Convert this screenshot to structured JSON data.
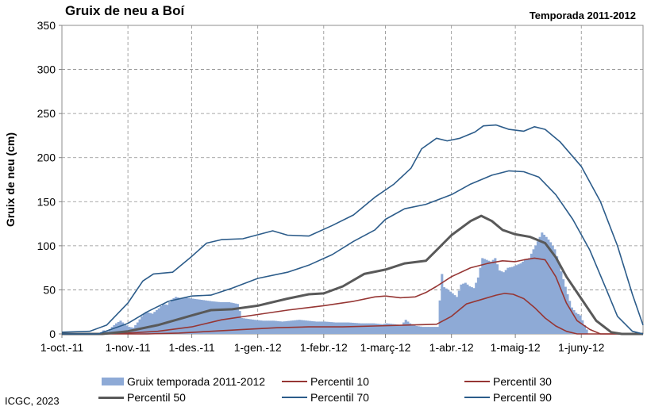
{
  "header": {
    "title": "Gruix de neu a Boí",
    "season": "Temporada 2011-2012"
  },
  "footer": {
    "credit": "ICGC, 2023"
  },
  "colors": {
    "bars": "#8EAAD6",
    "p10": "#963634",
    "p30": "#963634",
    "p50": "#595959",
    "p70": "#2C5C8A",
    "p90": "#2C5C8A",
    "grid": "#8C8C8C"
  },
  "chart_data": {
    "type": "bar+line",
    "title": "Gruix de neu a Boí",
    "ylabel": "Gruix de neu (cm)",
    "xlabel": "",
    "ylim": [
      0,
      350
    ],
    "yticks": [
      0,
      50,
      100,
      150,
      200,
      250,
      300,
      350
    ],
    "x_start": "1-oct.-11",
    "x_end": "30-jun.-12",
    "grid": true,
    "legend_position": "bottom",
    "x_tick_labels": [
      {
        "date": "2011-10-01",
        "label": "1-oct.-11"
      },
      {
        "date": "2011-11-01",
        "label": "1-nov.-11"
      },
      {
        "date": "2011-12-01",
        "label": "1-des.-11"
      },
      {
        "date": "2012-01-01",
        "label": "1-gen.-12"
      },
      {
        "date": "2012-02-01",
        "label": "1-febr.-12"
      },
      {
        "date": "2012-03-01",
        "label": "1-març-12"
      },
      {
        "date": "2012-04-01",
        "label": "1-abr.-12"
      },
      {
        "date": "2012-05-01",
        "label": "1-maig-12"
      },
      {
        "date": "2012-06-01",
        "label": "1-juny-12"
      }
    ],
    "bars": {
      "name": "Gruix temporada 2011-2012",
      "points": [
        [
          "2011-10-01",
          0
        ],
        [
          "2011-10-18",
          0
        ],
        [
          "2011-10-20",
          4
        ],
        [
          "2011-10-22",
          3
        ],
        [
          "2011-10-24",
          8
        ],
        [
          "2011-10-26",
          12
        ],
        [
          "2011-10-28",
          15
        ],
        [
          "2011-10-30",
          11
        ],
        [
          "2011-11-01",
          8
        ],
        [
          "2011-11-03",
          7
        ],
        [
          "2011-11-05",
          13
        ],
        [
          "2011-11-07",
          20
        ],
        [
          "2011-11-09",
          25
        ],
        [
          "2011-11-12",
          23
        ],
        [
          "2011-11-15",
          29
        ],
        [
          "2011-11-17",
          34
        ],
        [
          "2011-11-19",
          33
        ],
        [
          "2011-11-21",
          39
        ],
        [
          "2011-11-23",
          42
        ],
        [
          "2011-11-26",
          40
        ],
        [
          "2011-11-28",
          41
        ],
        [
          "2011-12-01",
          40
        ],
        [
          "2011-12-04",
          39
        ],
        [
          "2011-12-07",
          38
        ],
        [
          "2011-12-10",
          37
        ],
        [
          "2011-12-14",
          36
        ],
        [
          "2011-12-18",
          36
        ],
        [
          "2011-12-22",
          34
        ],
        [
          "2011-12-24",
          18
        ],
        [
          "2011-12-27",
          17
        ],
        [
          "2011-12-30",
          16
        ],
        [
          "2012-01-03",
          15
        ],
        [
          "2012-01-08",
          15
        ],
        [
          "2012-01-12",
          14
        ],
        [
          "2012-01-16",
          15
        ],
        [
          "2012-01-20",
          16
        ],
        [
          "2012-01-24",
          15
        ],
        [
          "2012-01-28",
          14
        ],
        [
          "2012-02-01",
          14
        ],
        [
          "2012-02-06",
          13
        ],
        [
          "2012-02-12",
          13
        ],
        [
          "2012-02-18",
          12
        ],
        [
          "2012-02-24",
          12
        ],
        [
          "2012-02-28",
          11
        ],
        [
          "2012-03-01",
          12
        ],
        [
          "2012-03-05",
          11
        ],
        [
          "2012-03-08",
          10
        ],
        [
          "2012-03-10",
          16
        ],
        [
          "2012-03-12",
          12
        ],
        [
          "2012-03-15",
          9
        ],
        [
          "2012-03-18",
          8
        ],
        [
          "2012-03-22",
          8
        ],
        [
          "2012-03-25",
          8
        ],
        [
          "2012-03-27",
          68
        ],
        [
          "2012-03-28",
          53
        ],
        [
          "2012-03-30",
          50
        ],
        [
          "2012-04-01",
          46
        ],
        [
          "2012-04-03",
          42
        ],
        [
          "2012-04-05",
          56
        ],
        [
          "2012-04-07",
          58
        ],
        [
          "2012-04-09",
          54
        ],
        [
          "2012-04-11",
          52
        ],
        [
          "2012-04-13",
          64
        ],
        [
          "2012-04-15",
          86
        ],
        [
          "2012-04-17",
          84
        ],
        [
          "2012-04-19",
          82
        ],
        [
          "2012-04-21",
          86
        ],
        [
          "2012-04-23",
          72
        ],
        [
          "2012-04-25",
          70
        ],
        [
          "2012-04-27",
          75
        ],
        [
          "2012-04-29",
          76
        ],
        [
          "2012-05-01",
          78
        ],
        [
          "2012-05-03",
          80
        ],
        [
          "2012-05-05",
          84
        ],
        [
          "2012-05-07",
          86
        ],
        [
          "2012-05-09",
          96
        ],
        [
          "2012-05-11",
          105
        ],
        [
          "2012-05-13",
          115
        ],
        [
          "2012-05-15",
          110
        ],
        [
          "2012-05-17",
          104
        ],
        [
          "2012-05-19",
          96
        ],
        [
          "2012-05-21",
          80
        ],
        [
          "2012-05-23",
          62
        ],
        [
          "2012-05-25",
          45
        ],
        [
          "2012-05-27",
          30
        ],
        [
          "2012-05-29",
          24
        ],
        [
          "2012-05-31",
          21
        ],
        [
          "2012-06-02",
          10
        ],
        [
          "2012-06-04",
          0
        ],
        [
          "2012-06-30",
          0
        ]
      ]
    },
    "series": [
      {
        "name": "Percentil 10",
        "key": "p10",
        "width": 1.6,
        "points": [
          [
            "2011-10-01",
            0
          ],
          [
            "2011-11-10",
            0
          ],
          [
            "2011-11-25",
            1
          ],
          [
            "2011-12-10",
            3
          ],
          [
            "2011-12-25",
            5
          ],
          [
            "2012-01-10",
            7
          ],
          [
            "2012-01-25",
            8
          ],
          [
            "2012-02-10",
            8
          ],
          [
            "2012-02-25",
            9
          ],
          [
            "2012-03-10",
            10
          ],
          [
            "2012-03-25",
            11
          ],
          [
            "2012-04-01",
            20
          ],
          [
            "2012-04-08",
            34
          ],
          [
            "2012-04-15",
            39
          ],
          [
            "2012-04-22",
            44
          ],
          [
            "2012-04-26",
            46
          ],
          [
            "2012-04-30",
            45
          ],
          [
            "2012-05-05",
            40
          ],
          [
            "2012-05-10",
            30
          ],
          [
            "2012-05-15",
            18
          ],
          [
            "2012-05-20",
            9
          ],
          [
            "2012-05-25",
            3
          ],
          [
            "2012-05-30",
            0
          ],
          [
            "2012-06-30",
            0
          ]
        ]
      },
      {
        "name": "Percentil 30",
        "key": "p30",
        "width": 1.6,
        "points": [
          [
            "2011-10-01",
            0
          ],
          [
            "2011-11-01",
            1
          ],
          [
            "2011-11-15",
            3
          ],
          [
            "2011-12-01",
            8
          ],
          [
            "2011-12-15",
            16
          ],
          [
            "2012-01-01",
            22
          ],
          [
            "2012-01-15",
            27
          ],
          [
            "2012-02-01",
            32
          ],
          [
            "2012-02-15",
            37
          ],
          [
            "2012-02-25",
            42
          ],
          [
            "2012-03-01",
            43
          ],
          [
            "2012-03-08",
            41
          ],
          [
            "2012-03-15",
            42
          ],
          [
            "2012-03-20",
            47
          ],
          [
            "2012-03-25",
            54
          ],
          [
            "2012-04-01",
            65
          ],
          [
            "2012-04-10",
            75
          ],
          [
            "2012-04-18",
            80
          ],
          [
            "2012-04-25",
            83
          ],
          [
            "2012-05-01",
            82
          ],
          [
            "2012-05-05",
            84
          ],
          [
            "2012-05-10",
            86
          ],
          [
            "2012-05-15",
            84
          ],
          [
            "2012-05-20",
            65
          ],
          [
            "2012-05-25",
            35
          ],
          [
            "2012-05-30",
            15
          ],
          [
            "2012-06-05",
            5
          ],
          [
            "2012-06-10",
            0
          ],
          [
            "2012-06-30",
            0
          ]
        ]
      },
      {
        "name": "Percentil 50",
        "key": "p50",
        "width": 3,
        "points": [
          [
            "2011-10-01",
            0
          ],
          [
            "2011-10-20",
            0
          ],
          [
            "2011-11-01",
            3
          ],
          [
            "2011-11-15",
            10
          ],
          [
            "2011-12-01",
            21
          ],
          [
            "2011-12-10",
            27
          ],
          [
            "2011-12-20",
            28
          ],
          [
            "2012-01-01",
            32
          ],
          [
            "2012-01-15",
            40
          ],
          [
            "2012-01-25",
            45
          ],
          [
            "2012-02-01",
            46
          ],
          [
            "2012-02-10",
            54
          ],
          [
            "2012-02-20",
            68
          ],
          [
            "2012-03-01",
            73
          ],
          [
            "2012-03-10",
            80
          ],
          [
            "2012-03-20",
            83
          ],
          [
            "2012-03-25",
            95
          ],
          [
            "2012-04-01",
            112
          ],
          [
            "2012-04-10",
            128
          ],
          [
            "2012-04-15",
            134
          ],
          [
            "2012-04-20",
            128
          ],
          [
            "2012-04-25",
            118
          ],
          [
            "2012-05-01",
            113
          ],
          [
            "2012-05-08",
            110
          ],
          [
            "2012-05-15",
            103
          ],
          [
            "2012-05-20",
            87
          ],
          [
            "2012-05-25",
            65
          ],
          [
            "2012-06-01",
            40
          ],
          [
            "2012-06-08",
            15
          ],
          [
            "2012-06-15",
            2
          ],
          [
            "2012-06-20",
            0
          ],
          [
            "2012-06-30",
            0
          ]
        ]
      },
      {
        "name": "Percentil 70",
        "key": "p70",
        "width": 1.6,
        "points": [
          [
            "2011-10-01",
            0
          ],
          [
            "2011-10-18",
            0
          ],
          [
            "2011-11-01",
            12
          ],
          [
            "2011-11-10",
            25
          ],
          [
            "2011-11-20",
            37
          ],
          [
            "2011-12-01",
            43
          ],
          [
            "2011-12-10",
            44
          ],
          [
            "2011-12-20",
            52
          ],
          [
            "2012-01-01",
            63
          ],
          [
            "2012-01-15",
            70
          ],
          [
            "2012-01-25",
            78
          ],
          [
            "2012-02-05",
            90
          ],
          [
            "2012-02-15",
            105
          ],
          [
            "2012-02-25",
            118
          ],
          [
            "2012-03-01",
            130
          ],
          [
            "2012-03-10",
            142
          ],
          [
            "2012-03-20",
            147
          ],
          [
            "2012-04-01",
            158
          ],
          [
            "2012-04-10",
            170
          ],
          [
            "2012-04-20",
            180
          ],
          [
            "2012-04-28",
            185
          ],
          [
            "2012-05-05",
            184
          ],
          [
            "2012-05-12",
            178
          ],
          [
            "2012-05-20",
            158
          ],
          [
            "2012-05-28",
            130
          ],
          [
            "2012-06-05",
            95
          ],
          [
            "2012-06-12",
            55
          ],
          [
            "2012-06-18",
            20
          ],
          [
            "2012-06-25",
            3
          ],
          [
            "2012-06-30",
            0
          ]
        ]
      },
      {
        "name": "Percentil 90",
        "key": "p90",
        "width": 1.6,
        "points": [
          [
            "2011-10-01",
            2
          ],
          [
            "2011-10-14",
            3
          ],
          [
            "2011-10-22",
            10
          ],
          [
            "2011-11-01",
            35
          ],
          [
            "2011-11-08",
            60
          ],
          [
            "2011-11-13",
            68
          ],
          [
            "2011-11-22",
            70
          ],
          [
            "2011-12-01",
            88
          ],
          [
            "2011-12-08",
            103
          ],
          [
            "2011-12-15",
            107
          ],
          [
            "2011-12-25",
            108
          ],
          [
            "2012-01-08",
            117
          ],
          [
            "2012-01-15",
            112
          ],
          [
            "2012-01-25",
            111
          ],
          [
            "2012-02-05",
            123
          ],
          [
            "2012-02-15",
            135
          ],
          [
            "2012-02-25",
            155
          ],
          [
            "2012-03-05",
            170
          ],
          [
            "2012-03-13",
            188
          ],
          [
            "2012-03-18",
            210
          ],
          [
            "2012-03-25",
            222
          ],
          [
            "2012-03-30",
            219
          ],
          [
            "2012-04-05",
            222
          ],
          [
            "2012-04-12",
            229
          ],
          [
            "2012-04-16",
            236
          ],
          [
            "2012-04-22",
            237
          ],
          [
            "2012-04-28",
            232
          ],
          [
            "2012-05-05",
            230
          ],
          [
            "2012-05-10",
            235
          ],
          [
            "2012-05-15",
            232
          ],
          [
            "2012-05-22",
            218
          ],
          [
            "2012-06-01",
            190
          ],
          [
            "2012-06-10",
            150
          ],
          [
            "2012-06-18",
            100
          ],
          [
            "2012-06-25",
            45
          ],
          [
            "2012-06-30",
            10
          ]
        ]
      }
    ]
  },
  "legend": {
    "items": [
      {
        "label": "Gruix temporada 2011-2012",
        "key": "bars",
        "kind": "bar"
      },
      {
        "label": "Percentil 10",
        "key": "p10",
        "kind": "line",
        "thick": false
      },
      {
        "label": "Percentil 30",
        "key": "p30",
        "kind": "line",
        "thick": false
      },
      {
        "label": "Percentil 50",
        "key": "p50",
        "kind": "line",
        "thick": true
      },
      {
        "label": "Percentil 70",
        "key": "p70",
        "kind": "line",
        "thick": false
      },
      {
        "label": "Percentil 90",
        "key": "p90",
        "kind": "line",
        "thick": false
      }
    ]
  }
}
